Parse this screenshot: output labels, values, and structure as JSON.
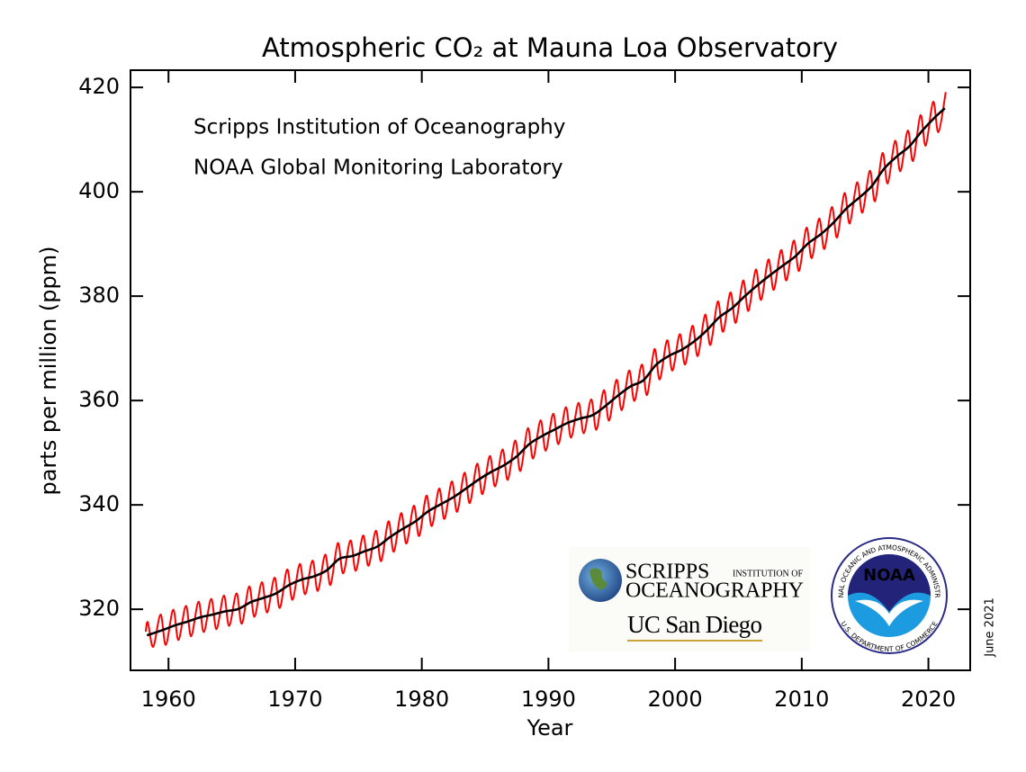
{
  "chart_data": {
    "type": "line",
    "title": "Atmospheric CO₂ at Mauna Loa Observatory",
    "x_label": "Year",
    "y_label": "parts per million (ppm)",
    "annotations": [
      "Scripps Institution of Oceanography",
      "NOAA Global Monitoring Laboratory"
    ],
    "date_note": "June 2021",
    "logos": {
      "scripps": "SCRIPPS",
      "scripps_sub": "INSTITUTION OF",
      "oceanography": "OCEANOGRAPHY",
      "ucsd": "UC San Diego",
      "noaa": "NOAA",
      "noaa_ring_top": "NATIONAL OCEANIC AND ATMOSPHERIC ADMINISTRATION",
      "noaa_ring_bottom": "U.S. DEPARTMENT OF COMMERCE"
    },
    "xlim": [
      1957,
      2023.3
    ],
    "xticks": [
      1960,
      1970,
      1980,
      1990,
      2000,
      2010,
      2020
    ],
    "ylim": [
      308.3,
      423.3
    ],
    "yticks": [
      320,
      340,
      360,
      380,
      400,
      420
    ],
    "series": [
      {
        "color": "#ff0000",
        "x": [
          1958.2,
          1958.37,
          1958.79,
          1959.37,
          1959.79,
          1960.37,
          1960.79,
          1961.37,
          1961.79,
          1962.37,
          1962.79,
          1963.37,
          1963.79,
          1964.37,
          1964.79,
          1965.37,
          1965.79,
          1966.37,
          1966.79,
          1967.37,
          1967.79,
          1968.37,
          1968.79,
          1969.37,
          1969.79,
          1970.37,
          1970.79,
          1971.37,
          1971.79,
          1972.37,
          1972.79,
          1973.37,
          1973.79,
          1974.37,
          1974.79,
          1975.37,
          1975.79,
          1976.37,
          1976.79,
          1977.37,
          1977.79,
          1978.37,
          1978.79,
          1979.37,
          1979.79,
          1980.37,
          1980.79,
          1981.37,
          1981.79,
          1982.37,
          1982.79,
          1983.37,
          1983.79,
          1984.37,
          1984.79,
          1985.37,
          1985.79,
          1986.37,
          1986.79,
          1987.37,
          1987.79,
          1988.37,
          1988.79,
          1989.37,
          1989.79,
          1990.37,
          1990.79,
          1991.37,
          1991.79,
          1992.37,
          1992.79,
          1993.37,
          1993.79,
          1994.37,
          1994.79,
          1995.37,
          1995.79,
          1996.37,
          1996.79,
          1997.37,
          1997.79,
          1998.37,
          1998.79,
          1999.37,
          1999.79,
          2000.37,
          2000.79,
          2001.37,
          2001.79,
          2002.37,
          2002.79,
          2003.37,
          2003.79,
          2004.37,
          2004.79,
          2005.37,
          2005.79,
          2006.37,
          2006.79,
          2007.37,
          2007.79,
          2008.37,
          2008.79,
          2009.37,
          2009.79,
          2010.37,
          2010.79,
          2011.37,
          2011.79,
          2012.37,
          2012.79,
          2013.37,
          2013.79,
          2014.37,
          2014.79,
          2015.37,
          2015.79,
          2016.37,
          2016.79,
          2017.37,
          2017.79,
          2018.37,
          2018.79,
          2019.37,
          2019.79,
          2020.37,
          2020.79,
          2021.37
        ],
        "values": [
          315.7,
          317.5,
          312.8,
          318.98,
          313.18,
          319.91,
          314.11,
          320.64,
          314.84,
          321.45,
          315.65,
          321.99,
          316.19,
          322.62,
          316.82,
          323.04,
          317.24,
          324.37,
          318.57,
          325.18,
          319.38,
          326.05,
          320.25,
          327.62,
          321.82,
          328.68,
          322.88,
          329.32,
          323.52,
          330.46,
          324.66,
          332.68,
          326.88,
          333.19,
          327.39,
          334.13,
          328.33,
          335.03,
          329.23,
          336.84,
          331.04,
          338.41,
          332.61,
          339.84,
          334.04,
          341.76,
          335.96,
          343.12,
          337.32,
          344.48,
          338.68,
          346.15,
          340.35,
          347.87,
          342.07,
          349.35,
          343.55,
          350.61,
          344.81,
          352.31,
          346.51,
          354.69,
          348.89,
          356.2,
          350.4,
          357.45,
          351.65,
          358.7,
          352.9,
          359.54,
          353.74,
          360.21,
          354.41,
          361.96,
          356.16,
          363.97,
          358.17,
          365.74,
          359.94,
          366.88,
          361.08,
          369.84,
          364.04,
          371.54,
          365.74,
          372.71,
          366.91,
          374.32,
          368.52,
          376.45,
          370.65,
          378.98,
          373.18,
          380.7,
          374.9,
          382.98,
          377.18,
          385.09,
          379.29,
          387.02,
          381.22,
          388.83,
          383.03,
          390.64,
          384.84,
          393.1,
          387.3,
          394.85,
          389.05,
          397.06,
          391.26,
          399.74,
          393.94,
          401.81,
          396.01,
          404.01,
          398.21,
          407.41,
          401.61,
          409.76,
          403.96,
          411.72,
          405.92,
          414.66,
          408.86,
          417.24,
          411.44,
          419.1
        ]
      },
      {
        "color": "#000000",
        "x": [
          1958.3,
          1959.5,
          1960.5,
          1961.5,
          1962.5,
          1963.5,
          1964.5,
          1965.5,
          1966.5,
          1967.5,
          1968.5,
          1969.5,
          1970.5,
          1971.5,
          1972.5,
          1973.5,
          1974.5,
          1975.5,
          1976.5,
          1977.5,
          1978.5,
          1979.5,
          1980.5,
          1981.5,
          1982.5,
          1983.5,
          1984.5,
          1985.5,
          1986.5,
          1987.5,
          1988.5,
          1989.5,
          1990.5,
          1991.5,
          1992.5,
          1993.5,
          1994.5,
          1995.5,
          1996.5,
          1997.5,
          1998.5,
          1999.5,
          2000.5,
          2001.5,
          2002.5,
          2003.5,
          2004.5,
          2005.5,
          2006.5,
          2007.5,
          2008.5,
          2009.5,
          2010.5,
          2011.5,
          2012.5,
          2013.5,
          2014.5,
          2015.5,
          2016.5,
          2017.5,
          2018.5,
          2019.5,
          2020.5,
          2021.3
        ],
        "values": [
          315.0,
          315.98,
          316.91,
          317.64,
          318.45,
          318.99,
          319.62,
          320.04,
          321.37,
          322.18,
          323.05,
          324.62,
          325.68,
          326.32,
          327.46,
          329.68,
          330.19,
          331.13,
          332.03,
          333.84,
          335.41,
          336.84,
          338.76,
          340.12,
          341.48,
          343.15,
          344.87,
          346.35,
          347.61,
          349.31,
          351.69,
          353.2,
          354.45,
          355.7,
          356.54,
          357.21,
          358.96,
          360.97,
          362.74,
          363.88,
          366.84,
          368.54,
          369.71,
          371.32,
          373.45,
          375.98,
          377.7,
          379.98,
          382.09,
          384.02,
          385.83,
          387.64,
          390.1,
          391.85,
          394.06,
          396.74,
          398.81,
          401.01,
          404.41,
          406.76,
          408.72,
          411.66,
          414.24,
          416.0
        ]
      }
    ]
  }
}
